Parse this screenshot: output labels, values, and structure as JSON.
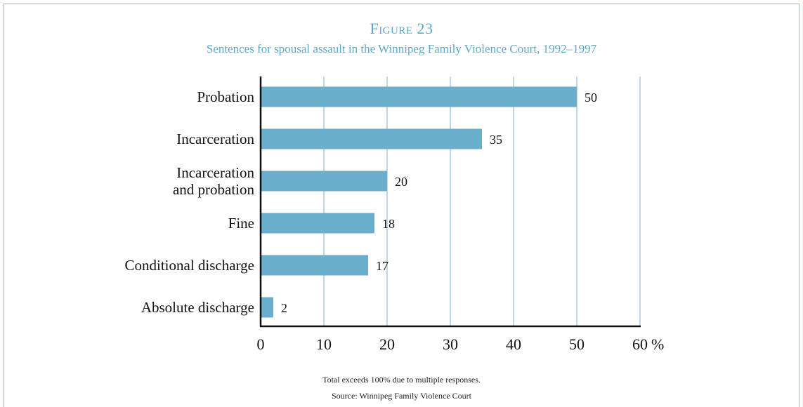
{
  "figure": {
    "number": "Figure 23",
    "title": "Sentences for spousal assault in the Winnipeg Family Violence Court, 1992–1997"
  },
  "chart_data": {
    "type": "bar",
    "orientation": "horizontal",
    "categories": [
      [
        "Probation"
      ],
      [
        "Incarceration"
      ],
      [
        "Incarceration",
        "and probation"
      ],
      [
        "Fine"
      ],
      [
        "Conditional discharge"
      ],
      [
        "Absolute discharge"
      ]
    ],
    "values": [
      50,
      35,
      20,
      18,
      17,
      2
    ],
    "value_labels": [
      "50",
      "35",
      "20",
      "18",
      "17",
      "2"
    ],
    "xlim": [
      0,
      60
    ],
    "xticks": [
      "0",
      "10",
      "20",
      "30",
      "40",
      "50",
      "60"
    ],
    "x_unit": "%",
    "grid": true,
    "bar_color": "#6aaecb",
    "grid_color": "#8fbfd4"
  },
  "notes": {
    "footnote": "Total exceeds 100% due to multiple responses.",
    "source": "Source: Winnipeg Family Violence Court"
  }
}
